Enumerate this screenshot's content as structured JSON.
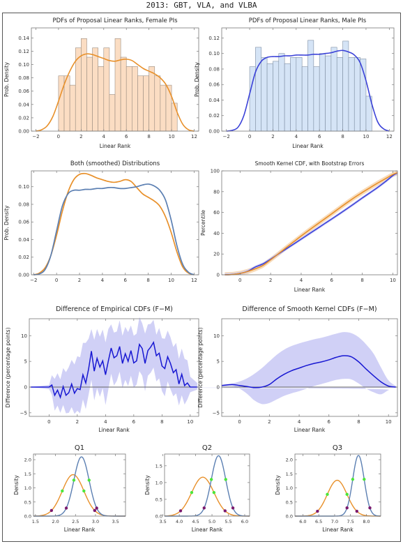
{
  "page": {
    "title": "2013: GBT, VLA, and VLBA"
  },
  "colors": {
    "female": "#E8902A",
    "male": "#3A41D8",
    "both_male": "#5B7FB2",
    "kernel_blue": "#1717D2",
    "band_blue": "#C8C8F5",
    "band_orange": "#F6CFA2",
    "red_dot": "#E5181A",
    "purple_dot": "#7B1A6E",
    "green_dot": "#4BE73A",
    "zero_line": "#666666"
  },
  "chart_data": [
    {
      "id": "female_pdf",
      "type": "bar",
      "title": "PDFs of Proposal Linear Ranks, Female PIs",
      "xlabel": "Linear Rank",
      "ylabel": "Prob. Density",
      "xlim": [
        -2.4,
        12.4
      ],
      "ylim": [
        0,
        0.155
      ],
      "xticks": [
        -2,
        0,
        2,
        4,
        6,
        8,
        10,
        12
      ],
      "yticks": [
        0.0,
        0.02,
        0.04,
        0.06,
        0.08,
        0.1,
        0.12,
        0.14
      ],
      "ytick_labels": [
        "0.00",
        "0.02",
        "0.04",
        "0.06",
        "0.08",
        "0.10",
        "0.12",
        "0.14"
      ],
      "bin_start": 0,
      "bin_width": 0.5,
      "values": [
        0.083,
        0.083,
        0.069,
        0.125,
        0.139,
        0.111,
        0.125,
        0.097,
        0.125,
        0.055,
        0.139,
        0.111,
        0.097,
        0.097,
        0.083,
        0.083,
        0.097,
        0.083,
        0.069,
        0.069,
        0.042
      ],
      "curve": {
        "x": [
          -2,
          -1.5,
          -1,
          -0.5,
          0,
          0.5,
          1,
          1.5,
          2,
          2.5,
          3,
          3.5,
          4,
          4.5,
          5,
          5.5,
          6,
          6.5,
          7,
          7.5,
          8,
          8.5,
          9,
          9.5,
          10,
          10.5,
          11,
          11.5,
          12
        ],
        "y": [
          0.0,
          0.002,
          0.008,
          0.022,
          0.045,
          0.07,
          0.09,
          0.105,
          0.113,
          0.116,
          0.115,
          0.112,
          0.109,
          0.106,
          0.105,
          0.107,
          0.108,
          0.106,
          0.1,
          0.094,
          0.09,
          0.086,
          0.08,
          0.07,
          0.052,
          0.028,
          0.01,
          0.002,
          0.0
        ]
      }
    },
    {
      "id": "male_pdf",
      "type": "bar",
      "title": "PDFs of Proposal Linear Ranks, Male PIs",
      "xlabel": "Linear Rank",
      "ylabel": "Prob. Density",
      "xlim": [
        -2.4,
        12.4
      ],
      "ylim": [
        0,
        0.133
      ],
      "xticks": [
        -2,
        0,
        2,
        4,
        6,
        8,
        10,
        12
      ],
      "yticks": [
        0.0,
        0.02,
        0.04,
        0.06,
        0.08,
        0.1,
        0.12
      ],
      "ytick_labels": [
        "0.00",
        "0.02",
        "0.04",
        "0.06",
        "0.08",
        "0.10",
        "0.12"
      ],
      "bin_start": 0,
      "bin_width": 0.5,
      "values": [
        0.083,
        0.108,
        0.095,
        0.087,
        0.09,
        0.1,
        0.087,
        0.095,
        0.095,
        0.083,
        0.117,
        0.083,
        0.1,
        0.097,
        0.108,
        0.095,
        0.116,
        0.095,
        0.095,
        0.093,
        0.045
      ],
      "curve": {
        "x": [
          -2,
          -1.5,
          -1,
          -0.5,
          0,
          0.5,
          1,
          1.5,
          2,
          2.5,
          3,
          3.5,
          4,
          4.5,
          5,
          5.5,
          6,
          6.5,
          7,
          7.5,
          8,
          8.5,
          9,
          9.5,
          10,
          10.5,
          11,
          11.5,
          12
        ],
        "y": [
          0.0,
          0.001,
          0.005,
          0.02,
          0.048,
          0.076,
          0.09,
          0.095,
          0.096,
          0.096,
          0.097,
          0.097,
          0.098,
          0.098,
          0.098,
          0.099,
          0.099,
          0.1,
          0.101,
          0.103,
          0.104,
          0.102,
          0.098,
          0.088,
          0.065,
          0.035,
          0.012,
          0.003,
          0.0
        ]
      }
    },
    {
      "id": "both_smoothed",
      "type": "line",
      "title": "Both (smoothed) Distributions",
      "xlabel": "",
      "ylabel": "Prob. Density",
      "xlim": [
        -2.2,
        12.4
      ],
      "ylim": [
        0,
        0.118
      ],
      "xticks": [
        -2,
        0,
        2,
        4,
        6,
        8,
        10,
        12
      ],
      "yticks": [
        0.0,
        0.02,
        0.04,
        0.06,
        0.08,
        0.1
      ],
      "ytick_labels": [
        "0.00",
        "0.02",
        "0.04",
        "0.06",
        "0.08",
        "0.10"
      ],
      "x": [
        -2,
        -1.5,
        -1,
        -0.5,
        0,
        0.5,
        1,
        1.5,
        2,
        2.5,
        3,
        3.5,
        4,
        4.5,
        5,
        5.5,
        6,
        6.5,
        7,
        7.5,
        8,
        8.5,
        9,
        9.5,
        10,
        10.5,
        11,
        11.5,
        12
      ],
      "series": [
        {
          "color_key": "female",
          "values": [
            0.0,
            0.002,
            0.008,
            0.022,
            0.045,
            0.072,
            0.094,
            0.108,
            0.114,
            0.115,
            0.113,
            0.11,
            0.108,
            0.106,
            0.105,
            0.106,
            0.108,
            0.106,
            0.099,
            0.092,
            0.088,
            0.084,
            0.078,
            0.066,
            0.048,
            0.026,
            0.009,
            0.002,
            0.0
          ]
        },
        {
          "color_key": "both_male",
          "values": [
            0.0,
            0.001,
            0.006,
            0.022,
            0.05,
            0.078,
            0.092,
            0.096,
            0.096,
            0.097,
            0.097,
            0.098,
            0.098,
            0.099,
            0.099,
            0.098,
            0.098,
            0.099,
            0.1,
            0.102,
            0.103,
            0.101,
            0.096,
            0.085,
            0.062,
            0.033,
            0.012,
            0.003,
            0.0
          ]
        }
      ]
    },
    {
      "id": "kernel_cdf",
      "type": "line",
      "title": "Smooth Kernel CDF, with Bootstrap Errors",
      "xlabel": "Linear Rank",
      "ylabel": "Percentile",
      "xlim": [
        -1.2,
        10.3
      ],
      "ylim": [
        0,
        100
      ],
      "xticks": [
        0,
        2,
        4,
        6,
        8,
        10
      ],
      "yticks": [
        0,
        20,
        40,
        60,
        80,
        100
      ],
      "ytick_labels": [
        "0",
        "20",
        "40",
        "60",
        "80",
        "100"
      ],
      "x": [
        -1,
        -0.5,
        0,
        0.5,
        1,
        1.5,
        2,
        2.5,
        3,
        3.5,
        4,
        4.5,
        5,
        5.5,
        6,
        6.5,
        7,
        7.5,
        8,
        8.5,
        9,
        9.5,
        10,
        10.3
      ],
      "series": [
        {
          "color_key": "female",
          "values": [
            0,
            0.3,
            1.3,
            3.2,
            5.8,
            9.0,
            14.4,
            20.1,
            25.9,
            31.6,
            37.3,
            42.8,
            48.1,
            53.4,
            58.7,
            64.1,
            69.4,
            74.5,
            79.2,
            83.7,
            88.2,
            92.3,
            96.5,
            98.3
          ],
          "band": 2.5
        },
        {
          "color_key": "male",
          "values": [
            0,
            0.3,
            1.3,
            3.4,
            7.5,
            10.5,
            15.0,
            19.9,
            24.7,
            29.5,
            34.3,
            39.2,
            44.0,
            48.9,
            53.7,
            58.6,
            63.6,
            68.7,
            73.9,
            78.9,
            84.0,
            89.5,
            95.5,
            98.0
          ],
          "band": 1.5
        }
      ]
    },
    {
      "id": "diff_empirical",
      "type": "line",
      "title": "Difference of Empirical CDFs (F−M)",
      "xlabel": "Linear Rank",
      "ylabel": "Difference (percentage points)",
      "xlim": [
        -1.4,
        10.6
      ],
      "ylim": [
        -5.7,
        13.3
      ],
      "xticks": [
        0,
        2,
        4,
        6,
        8,
        10
      ],
      "yticks": [
        -5,
        0,
        5,
        10
      ],
      "ytick_labels": [
        "−5",
        "0",
        "5",
        "10"
      ],
      "x": [
        -1.3,
        0,
        0.2,
        0.4,
        0.6,
        0.8,
        1,
        1.2,
        1.4,
        1.6,
        1.8,
        2,
        2.2,
        2.4,
        2.6,
        2.8,
        3,
        3.2,
        3.4,
        3.6,
        3.8,
        4,
        4.2,
        4.4,
        4.6,
        4.8,
        5,
        5.2,
        5.4,
        5.6,
        5.8,
        6,
        6.2,
        6.4,
        6.6,
        6.8,
        7,
        7.2,
        7.4,
        7.6,
        7.8,
        8,
        8.2,
        8.4,
        8.6,
        8.8,
        9,
        9.2,
        9.4,
        9.6,
        9.8,
        10,
        10.5
      ],
      "series": [
        {
          "color_key": "kernel_blue",
          "values": [
            0,
            0,
            0.4,
            -1.6,
            -0.6,
            -2.0,
            0.1,
            -1.6,
            -1.1,
            0.6,
            -1.2,
            -0.3,
            -0.5,
            2.4,
            0.8,
            3.5,
            7.0,
            3.1,
            5.6,
            3.9,
            5.1,
            2.4,
            5.1,
            7.6,
            5.7,
            6.1,
            7.9,
            4.6,
            6.5,
            5.0,
            7.1,
            4.7,
            5.1,
            8.3,
            7.5,
            4.6,
            7.1,
            7.8,
            8.7,
            6.1,
            6.6,
            4.1,
            3.6,
            5.9,
            4.6,
            2.8,
            3.4,
            0.6,
            2.5,
            0.3,
            0.8,
            0,
            0
          ],
          "band_upper": [
            0,
            0.4,
            2.3,
            1.6,
            2.7,
            1.5,
            3.7,
            2.9,
            3.9,
            5.3,
            4.4,
            6.0,
            5.8,
            8.6,
            8.6,
            9.4,
            11.3,
            9.2,
            11.3,
            9.8,
            11.2,
            8.7,
            11.3,
            12.2,
            10.6,
            10.8,
            13.0,
            10.0,
            11.7,
            10.7,
            12.0,
            10.0,
            10.4,
            13.6,
            12.4,
            10.4,
            12.2,
            12.3,
            13.1,
            10.2,
            11.5,
            9.5,
            9.4,
            11.0,
            9.7,
            7.8,
            8.6,
            5.5,
            7.5,
            5.5,
            5.2,
            2.0,
            0.8
          ],
          "band_lower": [
            0,
            -0.4,
            -1.5,
            -4.6,
            -3.6,
            -5.0,
            -3.5,
            -5.1,
            -5.0,
            -3.9,
            -5.2,
            -4.6,
            -5.1,
            -2.4,
            -4.3,
            -1.5,
            1.4,
            -2.6,
            -0.2,
            -1.9,
            -0.2,
            -3.5,
            -0.5,
            2.6,
            0.3,
            1.2,
            3.0,
            -0.2,
            1.4,
            0.2,
            2.2,
            -0.1,
            0.5,
            3.1,
            2.2,
            -0.8,
            2.2,
            2.8,
            3.8,
            1.1,
            1.7,
            -0.8,
            -1.8,
            1.1,
            -0.4,
            -1.8,
            -1.2,
            -3.6,
            -1.6,
            -3.4,
            -2.4,
            -1.0,
            -0.5
          ]
        }
      ]
    },
    {
      "id": "diff_kernel",
      "type": "line",
      "title": "Difference of Smooth Kernel CDFs (F−M)",
      "xlabel": "Linear Rank",
      "ylabel": "Difference (percentage points)",
      "xlim": [
        -1.2,
        10.6
      ],
      "ylim": [
        -5.7,
        13.3
      ],
      "xticks": [
        0,
        2,
        4,
        6,
        8,
        10
      ],
      "yticks": [
        -5,
        0,
        5,
        10
      ],
      "ytick_labels": [
        "−5",
        "0",
        "5",
        "10"
      ],
      "x": [
        -1.2,
        -0.5,
        0,
        0.5,
        1,
        1.5,
        2,
        2.5,
        3,
        3.5,
        4,
        4.5,
        5,
        5.5,
        6,
        6.5,
        7,
        7.5,
        8,
        8.5,
        9,
        9.5,
        10,
        10.5
      ],
      "series": [
        {
          "color_key": "kernel_blue",
          "values": [
            0.3,
            0.5,
            0.3,
            0.1,
            -0.1,
            0.0,
            0.5,
            1.6,
            2.5,
            3.2,
            3.7,
            4.2,
            4.6,
            4.9,
            5.3,
            5.8,
            6.1,
            5.9,
            4.9,
            3.5,
            2.2,
            1.0,
            0.2,
            0.0
          ],
          "band_upper": [
            0.5,
            0.7,
            1.1,
            1.7,
            2.6,
            3.7,
            5.0,
            6.3,
            7.3,
            8.0,
            8.5,
            8.9,
            9.3,
            9.6,
            10.0,
            10.4,
            10.7,
            10.5,
            9.7,
            8.3,
            6.5,
            3.8,
            1.3,
            0.2
          ],
          "band_lower": [
            0.1,
            0.2,
            -0.3,
            -1.3,
            -2.6,
            -3.3,
            -3.1,
            -2.4,
            -1.7,
            -1.2,
            -0.8,
            -0.3,
            0.2,
            0.6,
            1.0,
            1.4,
            1.6,
            1.5,
            0.7,
            -0.3,
            -1.0,
            -1.4,
            -0.6,
            -0.1
          ]
        }
      ]
    },
    {
      "id": "q1",
      "type": "line",
      "title": "Q1",
      "xlabel": "Linear Rank",
      "ylabel": "Density",
      "xlim": [
        1.45,
        3.75
      ],
      "ylim": [
        0,
        2.2
      ],
      "xticks": [
        1.5,
        2.0,
        2.5,
        3.0,
        3.5
      ],
      "xtick_labels": [
        "1.5",
        "2.0",
        "2.5",
        "3.0",
        "3.5"
      ],
      "yticks": [
        0,
        0.5,
        1.0,
        1.5,
        2.0
      ],
      "ytick_labels": [
        "0.0",
        "0.5",
        "1.0",
        "1.5",
        "2.0"
      ],
      "series": [
        {
          "color_key": "female",
          "mean": 2.44,
          "sd": 0.27,
          "peak": 1.47
        },
        {
          "color_key": "both_male",
          "mean": 2.65,
          "sd": 0.19,
          "peak": 2.1
        }
      ],
      "markers": {
        "female": [
          1.9,
          2.17,
          2.71,
          2.98
        ],
        "male": [
          2.27,
          2.46,
          2.84,
          3.03
        ]
      }
    },
    {
      "id": "q2",
      "type": "line",
      "title": "Q2",
      "xlabel": "Linear Rank",
      "ylabel": "Density",
      "xlim": [
        3.55,
        6.15
      ],
      "ylim": [
        0,
        1.85
      ],
      "xticks": [
        3.5,
        4.0,
        4.5,
        5.0,
        5.5,
        6.0
      ],
      "xtick_labels": [
        "3.5",
        "4.0",
        "4.5",
        "5.0",
        "5.5",
        "6.0"
      ],
      "yticks": [
        0,
        0.5,
        1.0,
        1.5
      ],
      "ytick_labels": [
        "0.0",
        "0.5",
        "1.0",
        "1.5"
      ],
      "series": [
        {
          "color_key": "female",
          "mean": 4.72,
          "sd": 0.34,
          "peak": 1.16
        },
        {
          "color_key": "both_male",
          "mean": 5.2,
          "sd": 0.22,
          "peak": 1.8
        }
      ],
      "markers": {
        "female": [
          4.04,
          4.38,
          5.06,
          5.4
        ],
        "male": [
          4.76,
          4.98,
          5.42,
          5.64
        ]
      }
    },
    {
      "id": "q3",
      "type": "line",
      "title": "Q3",
      "xlabel": "Linear Rank",
      "ylabel": "Density",
      "xlim": [
        5.75,
        8.45
      ],
      "ylim": [
        0,
        2.2
      ],
      "xticks": [
        6.0,
        6.5,
        7.0,
        7.5,
        8.0
      ],
      "xtick_labels": [
        "6.0",
        "6.5",
        "7.0",
        "7.5",
        "8.0"
      ],
      "yticks": [
        0,
        0.5,
        1.0,
        1.5,
        2.0
      ],
      "ytick_labels": [
        "0.0",
        "0.5",
        "1.0",
        "1.5",
        "2.0"
      ],
      "series": [
        {
          "color_key": "female",
          "mean": 7.08,
          "sd": 0.31,
          "peak": 1.27
        },
        {
          "color_key": "both_male",
          "mean": 7.75,
          "sd": 0.18,
          "peak": 2.15
        }
      ],
      "markers": {
        "female": [
          6.46,
          6.77,
          7.39,
          7.7
        ],
        "male": [
          7.39,
          7.57,
          7.93,
          8.11
        ]
      }
    }
  ]
}
